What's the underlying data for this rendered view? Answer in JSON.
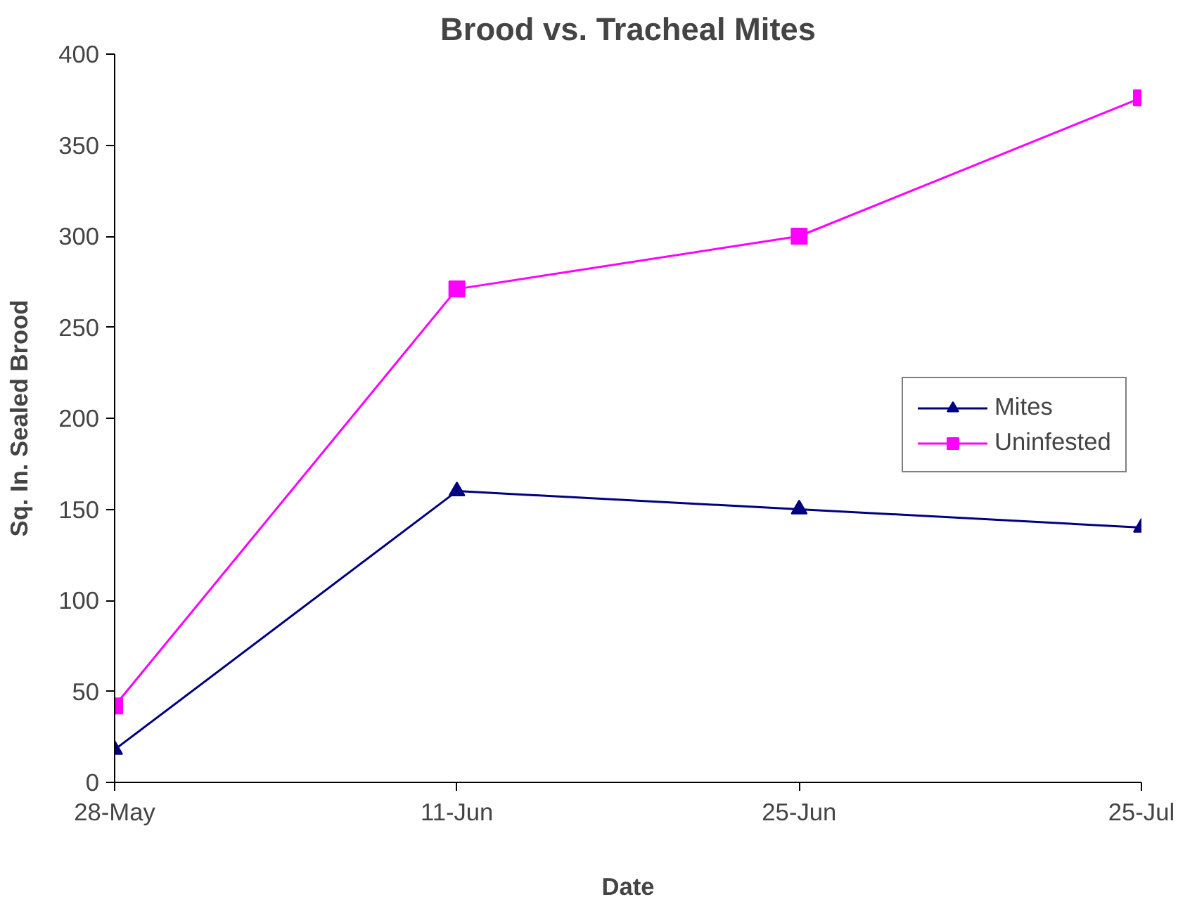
{
  "chart_data": {
    "type": "line",
    "title": "Brood vs. Tracheal Mites",
    "xlabel": "Date",
    "ylabel": "Sq. In. Sealed Brood",
    "categories": [
      "28-May",
      "11-Jun",
      "25-Jun",
      "25-Jul"
    ],
    "series": [
      {
        "name": "Mites",
        "color": "#000080",
        "marker": "triangle",
        "values": [
          18,
          160,
          150,
          140
        ]
      },
      {
        "name": "Uninfested",
        "color": "#ff00ff",
        "marker": "square",
        "values": [
          42,
          271,
          300,
          376
        ]
      }
    ],
    "ylim": [
      0,
      400
    ],
    "yticks": [
      0,
      50,
      100,
      150,
      200,
      250,
      300,
      350,
      400
    ],
    "grid": false,
    "legend": "right"
  }
}
